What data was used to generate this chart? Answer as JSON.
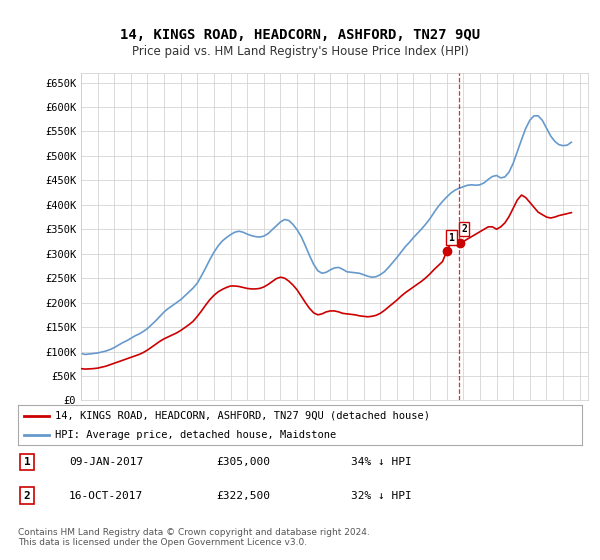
{
  "title": "14, KINGS ROAD, HEADCORN, ASHFORD, TN27 9QU",
  "subtitle": "Price paid vs. HM Land Registry's House Price Index (HPI)",
  "ylabel_ticks": [
    "£0",
    "£50K",
    "£100K",
    "£150K",
    "£200K",
    "£250K",
    "£300K",
    "£350K",
    "£400K",
    "£450K",
    "£500K",
    "£550K",
    "£600K",
    "£650K"
  ],
  "ytick_values": [
    0,
    50000,
    100000,
    150000,
    200000,
    250000,
    300000,
    350000,
    400000,
    450000,
    500000,
    550000,
    600000,
    650000
  ],
  "ylim": [
    0,
    670000
  ],
  "xlim_start": 1995.0,
  "xlim_end": 2025.5,
  "legend_property_label": "14, KINGS ROAD, HEADCORN, ASHFORD, TN27 9QU (detached house)",
  "legend_hpi_label": "HPI: Average price, detached house, Maidstone",
  "property_color": "#cc0000",
  "hpi_color": "#6699cc",
  "annotation1_label": "1",
  "annotation1_date": "09-JAN-2017",
  "annotation1_price": "£305,000",
  "annotation1_hpi": "34% ↓ HPI",
  "annotation2_label": "2",
  "annotation2_date": "16-OCT-2017",
  "annotation2_price": "£322,500",
  "annotation2_hpi": "32% ↓ HPI",
  "vline_x": 2017.75,
  "vline_color": "#cc0000",
  "footer": "Contains HM Land Registry data © Crown copyright and database right 2024.\nThis data is licensed under the Open Government Licence v3.0.",
  "background_color": "#ffffff",
  "grid_color": "#cccccc",
  "hpi_data_x": [
    1995.0,
    1995.25,
    1995.5,
    1995.75,
    1996.0,
    1996.25,
    1996.5,
    1996.75,
    1997.0,
    1997.25,
    1997.5,
    1997.75,
    1998.0,
    1998.25,
    1998.5,
    1998.75,
    1999.0,
    1999.25,
    1999.5,
    1999.75,
    2000.0,
    2000.25,
    2000.5,
    2000.75,
    2001.0,
    2001.25,
    2001.5,
    2001.75,
    2002.0,
    2002.25,
    2002.5,
    2002.75,
    2003.0,
    2003.25,
    2003.5,
    2003.75,
    2004.0,
    2004.25,
    2004.5,
    2004.75,
    2005.0,
    2005.25,
    2005.5,
    2005.75,
    2006.0,
    2006.25,
    2006.5,
    2006.75,
    2007.0,
    2007.25,
    2007.5,
    2007.75,
    2008.0,
    2008.25,
    2008.5,
    2008.75,
    2009.0,
    2009.25,
    2009.5,
    2009.75,
    2010.0,
    2010.25,
    2010.5,
    2010.75,
    2011.0,
    2011.25,
    2011.5,
    2011.75,
    2012.0,
    2012.25,
    2012.5,
    2012.75,
    2013.0,
    2013.25,
    2013.5,
    2013.75,
    2014.0,
    2014.25,
    2014.5,
    2014.75,
    2015.0,
    2015.25,
    2015.5,
    2015.75,
    2016.0,
    2016.25,
    2016.5,
    2016.75,
    2017.0,
    2017.25,
    2017.5,
    2017.75,
    2018.0,
    2018.25,
    2018.5,
    2018.75,
    2019.0,
    2019.25,
    2019.5,
    2019.75,
    2020.0,
    2020.25,
    2020.5,
    2020.75,
    2021.0,
    2021.25,
    2021.5,
    2021.75,
    2022.0,
    2022.25,
    2022.5,
    2022.75,
    2023.0,
    2023.25,
    2023.5,
    2023.75,
    2024.0,
    2024.25,
    2024.5
  ],
  "hpi_data_y": [
    96000,
    94000,
    95000,
    96000,
    97000,
    99000,
    101000,
    104000,
    108000,
    113000,
    118000,
    122000,
    127000,
    132000,
    136000,
    141000,
    147000,
    155000,
    163000,
    172000,
    181000,
    188000,
    194000,
    200000,
    206000,
    214000,
    222000,
    230000,
    240000,
    255000,
    271000,
    288000,
    303000,
    316000,
    326000,
    333000,
    339000,
    344000,
    346000,
    344000,
    340000,
    337000,
    335000,
    334000,
    336000,
    341000,
    349000,
    357000,
    365000,
    370000,
    368000,
    360000,
    349000,
    335000,
    316000,
    296000,
    278000,
    265000,
    260000,
    262000,
    267000,
    271000,
    272000,
    268000,
    263000,
    262000,
    261000,
    260000,
    257000,
    254000,
    252000,
    253000,
    257000,
    263000,
    272000,
    282000,
    292000,
    303000,
    314000,
    323000,
    333000,
    342000,
    351000,
    361000,
    372000,
    385000,
    397000,
    407000,
    416000,
    424000,
    430000,
    434000,
    437000,
    440000,
    441000,
    440000,
    441000,
    445000,
    452000,
    458000,
    460000,
    455000,
    457000,
    467000,
    485000,
    509000,
    533000,
    556000,
    573000,
    582000,
    582000,
    573000,
    557000,
    541000,
    530000,
    523000,
    521000,
    522000,
    528000
  ],
  "property_data_x": [
    1995.0,
    1995.25,
    1995.5,
    1995.75,
    1996.0,
    1996.25,
    1996.5,
    1996.75,
    1997.0,
    1997.25,
    1997.5,
    1997.75,
    1998.0,
    1998.25,
    1998.5,
    1998.75,
    1999.0,
    1999.25,
    1999.5,
    1999.75,
    2000.0,
    2000.25,
    2000.5,
    2000.75,
    2001.0,
    2001.25,
    2001.5,
    2001.75,
    2002.0,
    2002.25,
    2002.5,
    2002.75,
    2003.0,
    2003.25,
    2003.5,
    2003.75,
    2004.0,
    2004.25,
    2004.5,
    2004.75,
    2005.0,
    2005.25,
    2005.5,
    2005.75,
    2006.0,
    2006.25,
    2006.5,
    2006.75,
    2007.0,
    2007.25,
    2007.5,
    2007.75,
    2008.0,
    2008.25,
    2008.5,
    2008.75,
    2009.0,
    2009.25,
    2009.5,
    2009.75,
    2010.0,
    2010.25,
    2010.5,
    2010.75,
    2011.0,
    2011.25,
    2011.5,
    2011.75,
    2012.0,
    2012.25,
    2012.5,
    2012.75,
    2013.0,
    2013.25,
    2013.5,
    2013.75,
    2014.0,
    2014.25,
    2014.5,
    2014.75,
    2015.0,
    2015.25,
    2015.5,
    2015.75,
    2016.0,
    2016.25,
    2016.5,
    2016.75,
    2017.0,
    2017.25,
    2017.5,
    2017.75,
    2018.0,
    2018.25,
    2018.5,
    2018.75,
    2019.0,
    2019.25,
    2019.5,
    2019.75,
    2020.0,
    2020.25,
    2020.5,
    2020.75,
    2021.0,
    2021.25,
    2021.5,
    2021.75,
    2022.0,
    2022.25,
    2022.5,
    2022.75,
    2023.0,
    2023.25,
    2023.5,
    2023.75,
    2024.0,
    2024.25,
    2024.5
  ],
  "property_data_y": [
    65000,
    64000,
    64500,
    65000,
    66000,
    68000,
    70000,
    73000,
    76000,
    79000,
    82000,
    85000,
    88000,
    91000,
    94000,
    98000,
    103000,
    109000,
    115000,
    121000,
    126000,
    130000,
    134000,
    138000,
    143000,
    149000,
    155000,
    162000,
    172000,
    183000,
    195000,
    206000,
    215000,
    222000,
    227000,
    231000,
    234000,
    234000,
    233000,
    231000,
    229000,
    228000,
    228000,
    229000,
    232000,
    237000,
    243000,
    249000,
    252000,
    250000,
    244000,
    236000,
    226000,
    213000,
    200000,
    188000,
    179000,
    175000,
    177000,
    181000,
    183000,
    183000,
    181000,
    178000,
    177000,
    176000,
    175000,
    173000,
    172000,
    171000,
    172000,
    174000,
    178000,
    184000,
    191000,
    198000,
    205000,
    213000,
    220000,
    226000,
    232000,
    238000,
    244000,
    251000,
    259000,
    268000,
    276000,
    284000,
    305000,
    322500,
    322500,
    322500,
    325000,
    330000,
    335000,
    340000,
    345000,
    350000,
    355000,
    355000,
    350000,
    355000,
    363000,
    376000,
    393000,
    410000,
    420000,
    415000,
    405000,
    395000,
    385000,
    380000,
    375000,
    373000,
    375000,
    378000,
    380000,
    382000,
    384000
  ],
  "sale1_x": 2017.03,
  "sale1_y": 305000,
  "sale2_x": 2017.79,
  "sale2_y": 322500
}
